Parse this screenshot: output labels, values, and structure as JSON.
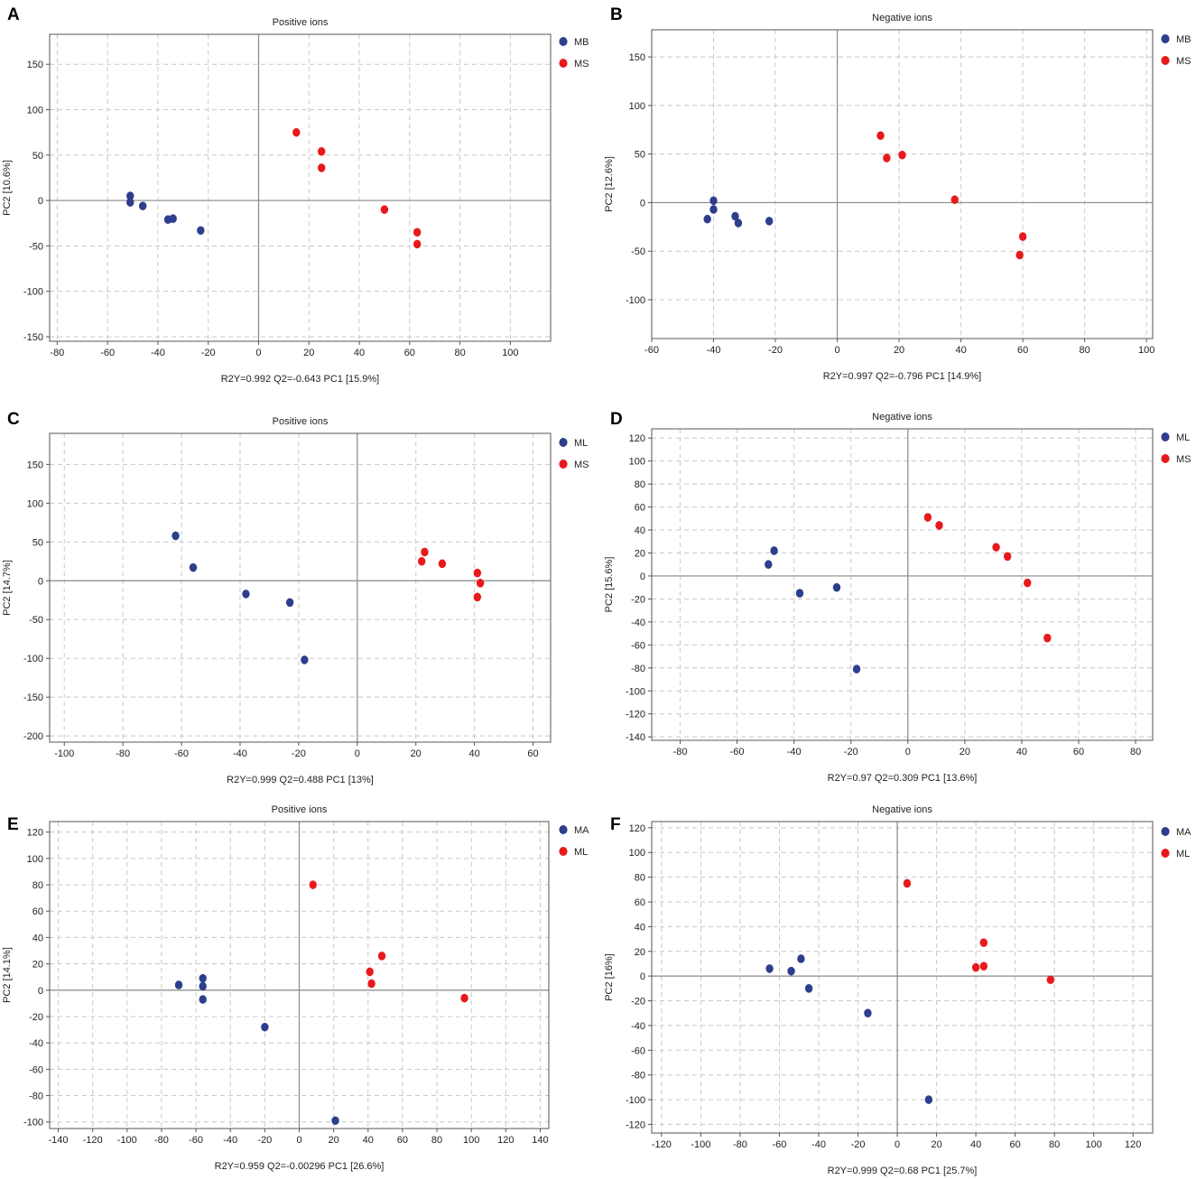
{
  "colors": {
    "group1": "#2d3e8c",
    "group2": "#e8191c",
    "grid": "#c8c8c8",
    "axis": "#555555",
    "origin": "#888888"
  },
  "chart_data": [
    {
      "type": "scatter",
      "panel_label": "A",
      "title": "Positive ions",
      "ylabel": "PC2 [10.6%]",
      "xlabel": "R2Y=0.992 Q2=-0.643 PC1 [15.9%]",
      "xlim": [
        -83,
        116
      ],
      "ylim": [
        -155,
        183
      ],
      "xticks": [
        -80,
        -60,
        -40,
        -20,
        0,
        20,
        40,
        60,
        80,
        100
      ],
      "yticks": [
        -150,
        -100,
        -50,
        0,
        50,
        100,
        150
      ],
      "series": [
        {
          "name": "MB",
          "points": [
            [
              -51,
              5
            ],
            [
              -51,
              -2
            ],
            [
              -46,
              -6
            ],
            [
              -36,
              -21
            ],
            [
              -34,
              -20
            ],
            [
              -23,
              -33
            ]
          ]
        },
        {
          "name": "MS",
          "points": [
            [
              15,
              75
            ],
            [
              25,
              54
            ],
            [
              25,
              36
            ],
            [
              50,
              -10
            ],
            [
              63,
              -35
            ],
            [
              63,
              -48
            ]
          ]
        }
      ]
    },
    {
      "type": "scatter",
      "panel_label": "B",
      "title": "Negative ions",
      "ylabel": "PC2 [12.6%]",
      "xlabel": "R2Y=0.997 Q2=-0.796 PC1 [14.9%]",
      "xlim": [
        -60,
        102
      ],
      "ylim": [
        -140,
        178
      ],
      "xticks": [
        -60,
        -40,
        -20,
        0,
        20,
        40,
        60,
        80,
        100
      ],
      "yticks": [
        -100,
        -50,
        0,
        50,
        100,
        150
      ],
      "series": [
        {
          "name": "MB",
          "points": [
            [
              -40,
              2
            ],
            [
              -40,
              -7
            ],
            [
              -42,
              -17
            ],
            [
              -33,
              -14
            ],
            [
              -32,
              -21
            ],
            [
              -22,
              -19
            ]
          ]
        },
        {
          "name": "MS",
          "points": [
            [
              14,
              69
            ],
            [
              16,
              46
            ],
            [
              21,
              49
            ],
            [
              38,
              3
            ],
            [
              60,
              -35
            ],
            [
              59,
              -54
            ]
          ]
        }
      ]
    },
    {
      "type": "scatter",
      "panel_label": "C",
      "title": "Positive ions",
      "ylabel": "PC2 [14.7%]",
      "xlabel": "R2Y=0.999 Q2=0.488 PC1 [13%]",
      "xlim": [
        -105,
        66
      ],
      "ylim": [
        -208,
        190
      ],
      "xticks": [
        -100,
        -80,
        -60,
        -40,
        -20,
        0,
        20,
        40,
        60
      ],
      "yticks": [
        -200,
        -150,
        -100,
        -50,
        0,
        50,
        100,
        150
      ],
      "series": [
        {
          "name": "ML",
          "points": [
            [
              -62,
              58
            ],
            [
              -56,
              17
            ],
            [
              -38,
              -17
            ],
            [
              -23,
              -28
            ],
            [
              -18,
              -102
            ]
          ]
        },
        {
          "name": "MS",
          "points": [
            [
              23,
              37
            ],
            [
              22,
              25
            ],
            [
              29,
              22
            ],
            [
              41,
              10
            ],
            [
              42,
              -3
            ],
            [
              41,
              -21
            ]
          ]
        }
      ]
    },
    {
      "type": "scatter",
      "panel_label": "D",
      "title": "Negative ions",
      "ylabel": "PC2 [15.6%]",
      "xlabel": "R2Y=0.97 Q2=0.309 PC1 [13.6%]",
      "xlim": [
        -90,
        86
      ],
      "ylim": [
        -143,
        128
      ],
      "xticks": [
        -80,
        -60,
        -40,
        -20,
        0,
        20,
        40,
        60,
        80
      ],
      "yticks": [
        -140,
        -120,
        -100,
        -80,
        -60,
        -40,
        -20,
        0,
        20,
        40,
        60,
        80,
        100,
        120
      ],
      "series": [
        {
          "name": "ML",
          "points": [
            [
              -47,
              22
            ],
            [
              -49,
              10
            ],
            [
              -38,
              -15
            ],
            [
              -25,
              -10
            ],
            [
              -18,
              -81
            ]
          ]
        },
        {
          "name": "MS",
          "points": [
            [
              7,
              51
            ],
            [
              11,
              44
            ],
            [
              31,
              25
            ],
            [
              35,
              17
            ],
            [
              42,
              -6
            ],
            [
              49,
              -54
            ]
          ]
        }
      ]
    },
    {
      "type": "scatter",
      "panel_label": "E",
      "title": "Positive ions",
      "ylabel": "PC2 [14.1%]",
      "xlabel": "R2Y=0.959 Q2=-0.00296 PC1 [26.6%]",
      "xlim": [
        -145,
        145
      ],
      "ylim": [
        -105,
        128
      ],
      "xticks": [
        -140,
        -120,
        -100,
        -80,
        -60,
        -40,
        -20,
        0,
        20,
        40,
        60,
        80,
        100,
        120,
        140
      ],
      "yticks": [
        -100,
        -80,
        -60,
        -40,
        -20,
        0,
        20,
        40,
        60,
        80,
        100,
        120
      ],
      "series": [
        {
          "name": "MA",
          "points": [
            [
              -70,
              4
            ],
            [
              -56,
              9
            ],
            [
              -56,
              3
            ],
            [
              -56,
              -7
            ],
            [
              -20,
              -28
            ],
            [
              21,
              -99
            ]
          ]
        },
        {
          "name": "ML",
          "points": [
            [
              8,
              80
            ],
            [
              48,
              26
            ],
            [
              41,
              14
            ],
            [
              42,
              5
            ],
            [
              96,
              -6
            ]
          ]
        }
      ]
    },
    {
      "type": "scatter",
      "panel_label": "F",
      "title": "Negative ions",
      "ylabel": "PC2 [16%]",
      "xlabel": "R2Y=0.999 Q2=0.68 PC1 [25.7%]",
      "xlim": [
        -125,
        130
      ],
      "ylim": [
        -127,
        125
      ],
      "xticks": [
        -120,
        -100,
        -80,
        -60,
        -40,
        -20,
        0,
        20,
        40,
        60,
        80,
        100,
        120
      ],
      "yticks": [
        -120,
        -100,
        -80,
        -60,
        -40,
        -20,
        0,
        20,
        40,
        60,
        80,
        100,
        120
      ],
      "series": [
        {
          "name": "MA",
          "points": [
            [
              -65,
              6
            ],
            [
              -54,
              4
            ],
            [
              -49,
              14
            ],
            [
              -45,
              -10
            ],
            [
              -15,
              -30
            ],
            [
              16,
              -100
            ]
          ]
        },
        {
          "name": "ML",
          "points": [
            [
              5,
              75
            ],
            [
              40,
              7
            ],
            [
              44,
              8
            ],
            [
              44,
              27
            ],
            [
              78,
              -3
            ]
          ]
        }
      ]
    }
  ]
}
